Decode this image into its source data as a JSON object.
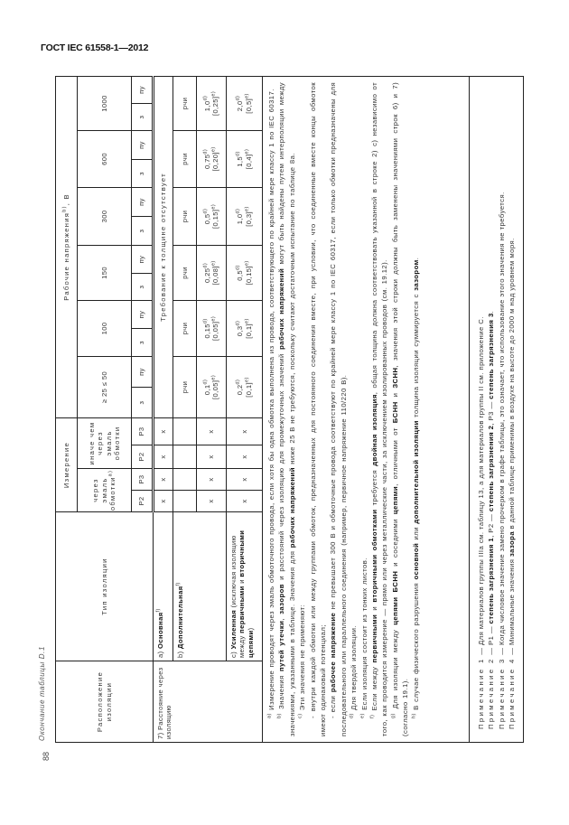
{
  "header": {
    "doc_code": "ГОСТ IEC 61558-1—2012"
  },
  "page": {
    "caption": "Окончание таблицы D.1",
    "number": "88"
  },
  "table": {
    "head": {
      "location": "Расположение изоляции",
      "type": "Тип изоляции",
      "measurement": "Измерение",
      "through_enamel": "через эмаль обмотки",
      "through_enamel_mark": "a)",
      "other_than_enamel": "иначе чем через эмаль обмотки",
      "working_voltage": "Рабочие напряжения",
      "working_voltage_mark": "b)",
      "working_voltage_unit": ", В",
      "p_cols": [
        "P2",
        "P3",
        "P2",
        "P3"
      ],
      "voltages": [
        "≥ 25 ≤ 50",
        "100",
        "150",
        "300",
        "600",
        "1000"
      ],
      "sub_z": "з",
      "sub_pu": "пу"
    },
    "row_group": "7) Расстояние через изоляцию",
    "rows": [
      {
        "label_prefix": "a) ",
        "label_bold": "Основная",
        "label_mark": "f)",
        "label_rest": "",
        "marks": [
          "x",
          "x",
          "x",
          "x"
        ]
      },
      {
        "label_prefix": "b) ",
        "label_bold": "Дополнительная",
        "label_mark": "f)",
        "label_rest": "",
        "marks": [
          "x",
          "x",
          "x",
          "x"
        ]
      },
      {
        "label_prefix": "c) ",
        "label_bold": "Усиленная",
        "label_mark": "",
        "label_rest": " (исключая изоляцию между ",
        "label_bold2": "первичными",
        "label_rest2": " и ",
        "label_bold3": "вторичными цепями",
        "label_rest3": ")",
        "marks": [
          "x",
          "x",
          "x",
          "x"
        ]
      }
    ],
    "no_requirement": "Требование к толщине отсутствует",
    "rchi": "рчи",
    "values_b": [
      {
        "v": "0,1",
        "m": "d)",
        "w": "[0,05]",
        "wm": "e)"
      },
      {
        "v": "0,15",
        "m": "d)",
        "w": "[0,05]",
        "wm": "e)"
      },
      {
        "v": "0,25",
        "m": "d)",
        "w": "[0,08]",
        "wm": "e)"
      },
      {
        "v": "0,5",
        "m": "d)",
        "w": "[0,15]",
        "wm": "e)"
      },
      {
        "v": "0,75",
        "m": "d)",
        "w": "[0,20]",
        "wm": "e)"
      },
      {
        "v": "1,0",
        "m": "d)",
        "w": "[0,25]",
        "wm": "e)"
      }
    ],
    "values_c": [
      {
        "v": "0,2",
        "m": "d)",
        "w": "[0,1]",
        "wm": "e)"
      },
      {
        "v": "0,3",
        "m": "d)",
        "w": "[0,1]",
        "wm": "e)"
      },
      {
        "v": "0,5",
        "m": "d)",
        "w": "[0,15]",
        "wm": "e)"
      },
      {
        "v": "1,0",
        "m": "d)",
        "w": "[0,3]",
        "wm": "e)"
      },
      {
        "v": "1,5",
        "m": "d)",
        "w": "[0,4]",
        "wm": "e)"
      },
      {
        "v": "2,0",
        "m": "d)",
        "w": "[0,5]",
        "wm": "e)"
      }
    ]
  },
  "footnotes": [
    {
      "mark": "a)",
      "cont": false,
      "parts": [
        {
          "t": " Измерение проводят через эмаль обмоточного провода, если хотя бы одна обмотка выполнена из провода, соответствующего по крайней мере классу 1 по IEC 60317.",
          "b": false
        }
      ]
    },
    {
      "mark": "b)",
      "cont": false,
      "parts": [
        {
          "t": " Значения ",
          "b": false
        },
        {
          "t": "путей утечки",
          "b": true
        },
        {
          "t": ", ",
          "b": false
        },
        {
          "t": "зазоров",
          "b": true
        },
        {
          "t": " и расстояний через изоляцию для промежуточных значений ",
          "b": false
        },
        {
          "t": "рабочих напряжений",
          "b": true
        },
        {
          "t": " могут быть найдены путем интерполяции между значениями, указанными в таблице. Значения для ",
          "b": false
        },
        {
          "t": "рабочих напряжений",
          "b": true
        },
        {
          "t": " ниже 25 В не требуются, поскольку считают достаточным испытание по таблице 8а.",
          "b": false
        }
      ]
    },
    {
      "mark": "c)",
      "cont": false,
      "parts": [
        {
          "t": " Эти значения не применяют:",
          "b": false
        }
      ]
    },
    {
      "mark": "",
      "cont": false,
      "parts": [
        {
          "t": "- внутри каждой обмотки или между группами обмоток, предназначенных для постоянного соединения вместе, при условии, что соединенные вместе концы обмоток имеют одинаковый потенциал;",
          "b": false
        }
      ]
    },
    {
      "mark": "",
      "cont": false,
      "parts": [
        {
          "t": "- если ",
          "b": false
        },
        {
          "t": "рабочее напряжение",
          "b": true
        },
        {
          "t": " не превышает 300 В и обмоточные провода соответствуют по крайней мере классу 1 по IEC 60317, если только обмотки предназначены для последовательного или параллельного соединения (например, первичное напряжение 110/220 В).",
          "b": false
        }
      ]
    },
    {
      "mark": "d)",
      "cont": false,
      "parts": [
        {
          "t": " Для твердой изоляции.",
          "b": false
        }
      ]
    },
    {
      "mark": "e)",
      "cont": false,
      "parts": [
        {
          "t": " Если изоляция состоит из тонких листов.",
          "b": false
        }
      ]
    },
    {
      "mark": "f)",
      "cont": false,
      "parts": [
        {
          "t": " Если между ",
          "b": false
        },
        {
          "t": "первичными",
          "b": true
        },
        {
          "t": " и ",
          "b": false
        },
        {
          "t": "вторичными обмотками",
          "b": true
        },
        {
          "t": " требуется ",
          "b": false
        },
        {
          "t": "двойная изоляция",
          "b": true
        },
        {
          "t": ", общая толщина должна соответствовать указанной в строке 2) с) независимо от того, как проводится измерение — прямо или через металлические части, за исключением изолированных проводов (см. 19.12).",
          "b": false
        }
      ]
    },
    {
      "mark": "g)",
      "cont": false,
      "parts": [
        {
          "t": " Для изоляции между ",
          "b": false
        },
        {
          "t": "цепями БСНН",
          "b": true
        },
        {
          "t": " и соседними ",
          "b": false
        },
        {
          "t": "цепями",
          "b": true
        },
        {
          "t": ", отличными от ",
          "b": false
        },
        {
          "t": "БСНН",
          "b": true
        },
        {
          "t": " и ",
          "b": false
        },
        {
          "t": "ЗСНН",
          "b": true
        },
        {
          "t": ", значения этой строки должны быть заменены значениями строк 6) и 7) (согласно 19.1).",
          "b": false
        }
      ]
    },
    {
      "mark": "h)",
      "cont": false,
      "parts": [
        {
          "t": " В случае физического разрушения ",
          "b": false
        },
        {
          "t": "основной",
          "b": true
        },
        {
          "t": " или ",
          "b": false
        },
        {
          "t": "дополнительной изоляции",
          "b": true
        },
        {
          "t": " толщина изоляции суммируется с ",
          "b": false
        },
        {
          "t": "зазором",
          "b": true
        },
        {
          "t": ".",
          "b": false
        }
      ]
    }
  ],
  "notes": [
    {
      "label": "Примечание 1",
      "parts": [
        {
          "t": " — Для материалов группы IIIa см. таблицу 13, а для материалов группы II см. приложение С.",
          "b": false
        }
      ]
    },
    {
      "label": "Примечание 2",
      "parts": [
        {
          "t": " — Р1 — ",
          "b": false
        },
        {
          "t": "степень загрязнения 1",
          "b": true
        },
        {
          "t": ", Р2 — ",
          "b": false
        },
        {
          "t": "степень загрязнения 2",
          "b": true
        },
        {
          "t": ", Р3 — ",
          "b": false
        },
        {
          "t": "степень загрязнения 3",
          "b": true
        },
        {
          "t": ".",
          "b": false
        }
      ]
    },
    {
      "label": "Примечание 3",
      "parts": [
        {
          "t": " — Когда числовое значение замено прочерком в графе таблицы, это означает, что использование этого значения не требуется.",
          "b": false
        }
      ]
    },
    {
      "label": "Примечание 4",
      "parts": [
        {
          "t": " — Минимальные значения ",
          "b": false
        },
        {
          "t": "зазора",
          "b": true
        },
        {
          "t": " в данной таблице применимы в воздухе на высоте до 2000 м над уровнем моря.",
          "b": false
        }
      ]
    }
  ]
}
